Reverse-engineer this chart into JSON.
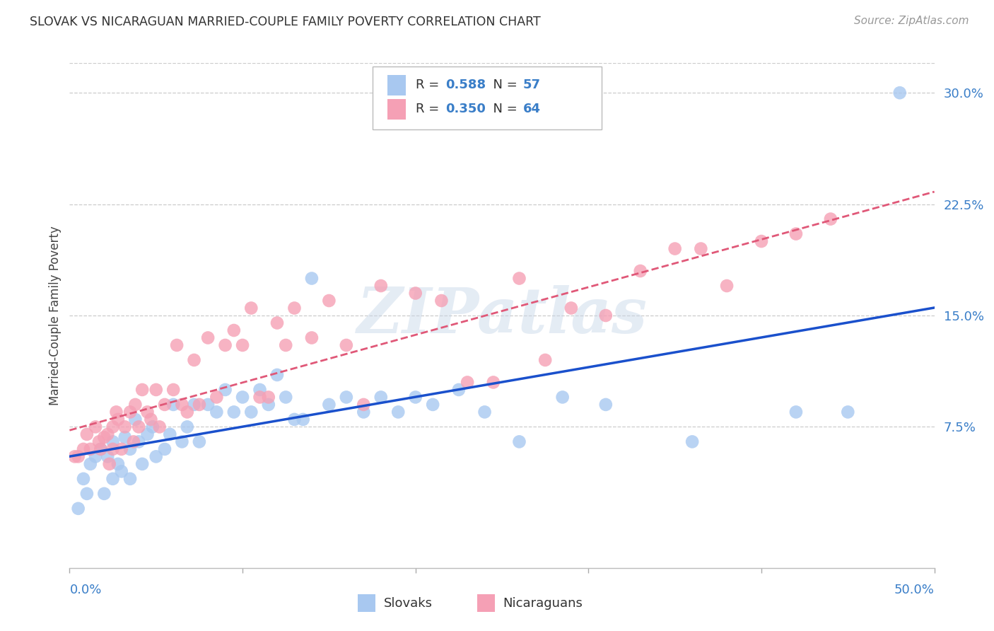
{
  "title": "SLOVAK VS NICARAGUAN MARRIED-COUPLE FAMILY POVERTY CORRELATION CHART",
  "source": "Source: ZipAtlas.com",
  "ylabel": "Married-Couple Family Poverty",
  "xlim": [
    0.0,
    0.5
  ],
  "ylim": [
    -0.02,
    0.32
  ],
  "slovak_color": "#a8c8f0",
  "nicaraguan_color": "#f5a0b5",
  "slovak_line_color": "#1a50cc",
  "nicaraguan_line_color": "#e05878",
  "background_color": "#ffffff",
  "grid_color": "#cccccc",
  "watermark": "ZIPatlas",
  "ytick_vals": [
    0.0,
    0.075,
    0.15,
    0.225,
    0.3
  ],
  "ytick_labels": [
    "",
    "7.5%",
    "15.0%",
    "22.5%",
    "30.0%"
  ],
  "xtick_vals": [
    0.0,
    0.1,
    0.2,
    0.3,
    0.4,
    0.5
  ],
  "slovaks_x": [
    0.005,
    0.008,
    0.01,
    0.012,
    0.015,
    0.018,
    0.02,
    0.022,
    0.025,
    0.025,
    0.028,
    0.03,
    0.032,
    0.035,
    0.035,
    0.038,
    0.04,
    0.042,
    0.045,
    0.048,
    0.05,
    0.055,
    0.058,
    0.06,
    0.065,
    0.068,
    0.072,
    0.075,
    0.08,
    0.085,
    0.09,
    0.095,
    0.1,
    0.105,
    0.11,
    0.115,
    0.12,
    0.125,
    0.13,
    0.135,
    0.14,
    0.15,
    0.16,
    0.17,
    0.18,
    0.19,
    0.2,
    0.21,
    0.225,
    0.24,
    0.26,
    0.285,
    0.31,
    0.36,
    0.42,
    0.45,
    0.48
  ],
  "slovaks_y": [
    0.02,
    0.04,
    0.03,
    0.05,
    0.055,
    0.06,
    0.03,
    0.055,
    0.04,
    0.065,
    0.05,
    0.045,
    0.068,
    0.04,
    0.06,
    0.08,
    0.065,
    0.05,
    0.07,
    0.075,
    0.055,
    0.06,
    0.07,
    0.09,
    0.065,
    0.075,
    0.09,
    0.065,
    0.09,
    0.085,
    0.1,
    0.085,
    0.095,
    0.085,
    0.1,
    0.09,
    0.11,
    0.095,
    0.08,
    0.08,
    0.175,
    0.09,
    0.095,
    0.085,
    0.095,
    0.085,
    0.095,
    0.09,
    0.1,
    0.085,
    0.065,
    0.095,
    0.09,
    0.065,
    0.085,
    0.085,
    0.3
  ],
  "nicaraguans_x": [
    0.003,
    0.005,
    0.008,
    0.01,
    0.012,
    0.015,
    0.017,
    0.018,
    0.02,
    0.022,
    0.023,
    0.025,
    0.025,
    0.027,
    0.028,
    0.03,
    0.032,
    0.035,
    0.037,
    0.038,
    0.04,
    0.042,
    0.045,
    0.047,
    0.05,
    0.052,
    0.055,
    0.06,
    0.062,
    0.065,
    0.068,
    0.072,
    0.075,
    0.08,
    0.085,
    0.09,
    0.095,
    0.1,
    0.105,
    0.11,
    0.115,
    0.12,
    0.125,
    0.13,
    0.14,
    0.15,
    0.16,
    0.17,
    0.18,
    0.2,
    0.215,
    0.23,
    0.245,
    0.26,
    0.275,
    0.29,
    0.31,
    0.33,
    0.35,
    0.365,
    0.38,
    0.4,
    0.42,
    0.44
  ],
  "nicaraguans_y": [
    0.055,
    0.055,
    0.06,
    0.07,
    0.06,
    0.075,
    0.065,
    0.06,
    0.068,
    0.07,
    0.05,
    0.06,
    0.075,
    0.085,
    0.08,
    0.06,
    0.075,
    0.085,
    0.065,
    0.09,
    0.075,
    0.1,
    0.085,
    0.08,
    0.1,
    0.075,
    0.09,
    0.1,
    0.13,
    0.09,
    0.085,
    0.12,
    0.09,
    0.135,
    0.095,
    0.13,
    0.14,
    0.13,
    0.155,
    0.095,
    0.095,
    0.145,
    0.13,
    0.155,
    0.135,
    0.16,
    0.13,
    0.09,
    0.17,
    0.165,
    0.16,
    0.105,
    0.105,
    0.175,
    0.12,
    0.155,
    0.15,
    0.18,
    0.195,
    0.195,
    0.17,
    0.2,
    0.205,
    0.215
  ]
}
